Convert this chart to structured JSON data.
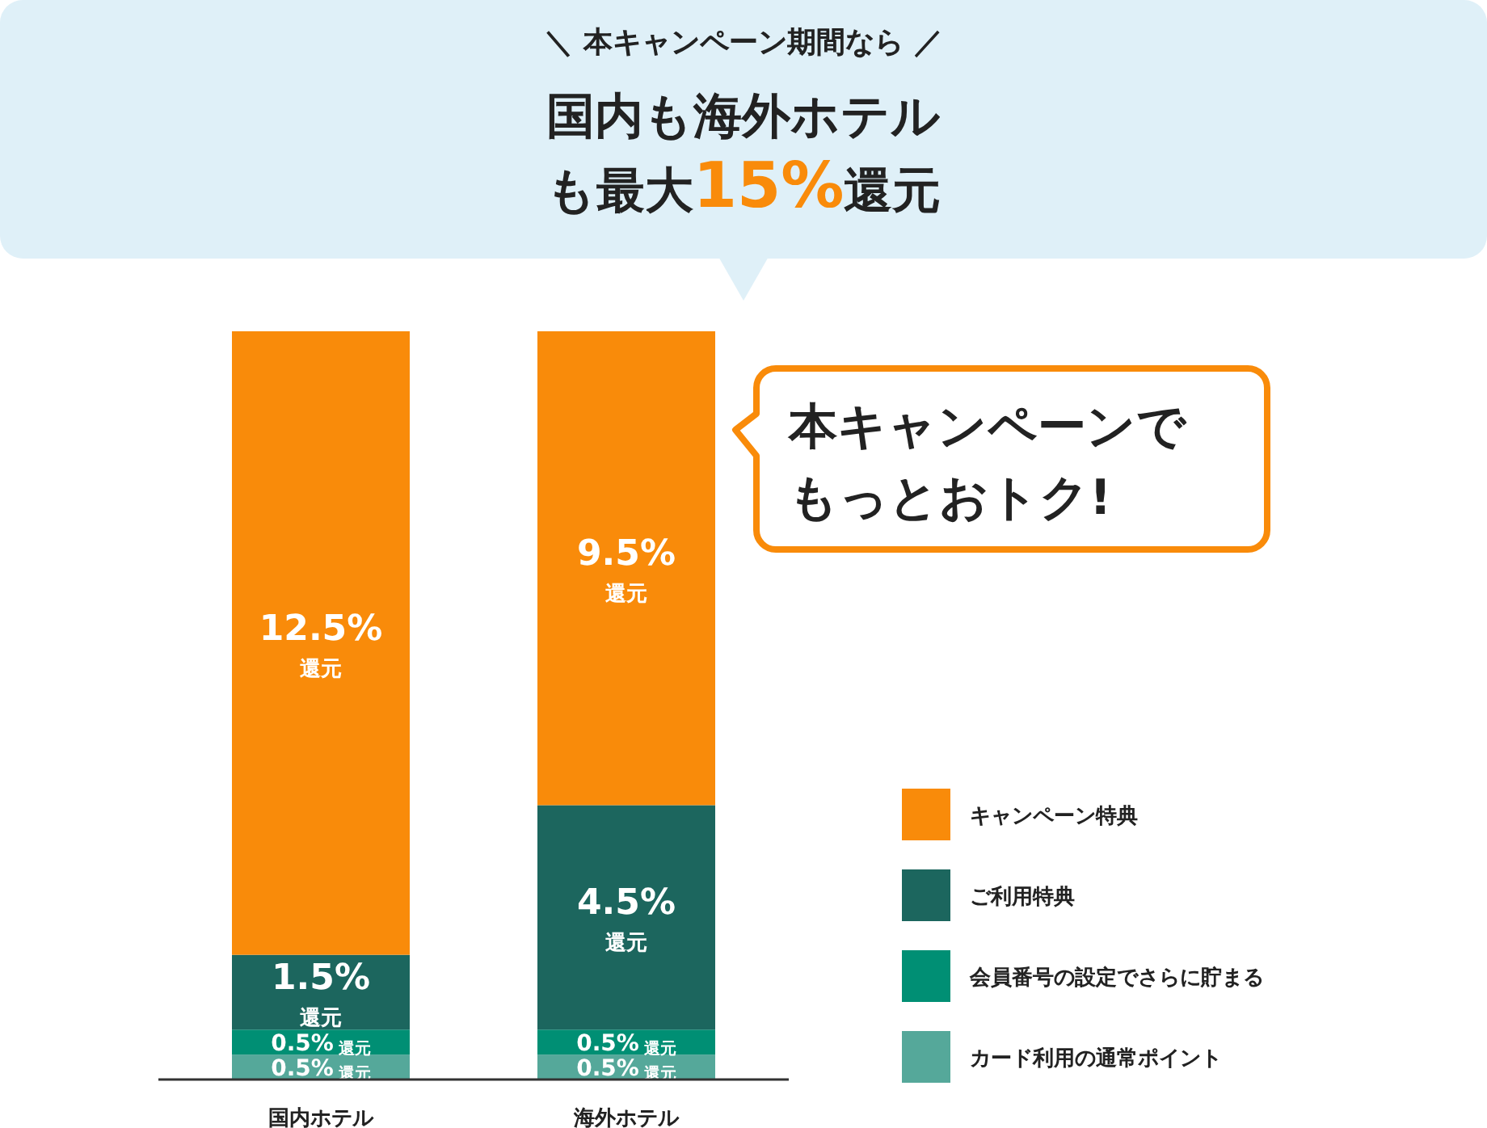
{
  "chart_data": {
    "type": "bar",
    "stacked": true,
    "subtitle": "＼ 本キャンペーン期間なら ／",
    "title": "国内も海外ホテルも最大15%還元",
    "categories": [
      "国内ホテル",
      "海外ホテル"
    ],
    "series": [
      {
        "name": "カード利用の通常ポイント",
        "color": "#55a89a",
        "values": [
          0.5,
          0.5
        ],
        "value_labels": [
          "0.5%$_{還元}$",
          "0.5%$_{還元}$"
        ]
      },
      {
        "name": "会員番号の設定でさらに貯まる",
        "color": "#008f74",
        "values": [
          0.5,
          0.5
        ],
        "value_labels": [
          "0.5%$_{還元}$",
          "0.5%$_{還元}$"
        ]
      },
      {
        "name": "ご利用特典",
        "color": "#1c665e",
        "values": [
          1.5,
          4.5
        ],
        "value_labels": [
          "1.5%$_{還元}$",
          "4.5%$_{還元}$"
        ]
      },
      {
        "name": "キャンペーン特典",
        "color": "#f98b0a",
        "values": [
          12.5,
          9.5
        ],
        "value_labels": [
          "12.5%$_{還元}$",
          "9.5%$_{還元}$"
        ]
      }
    ],
    "legend": "right",
    "annotations": [
      "本キャンペーンでもっとおトク!"
    ]
  }
}
